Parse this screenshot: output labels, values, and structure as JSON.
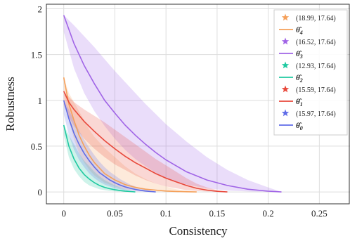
{
  "chart_data": {
    "type": "line",
    "xlabel": "Consistency",
    "ylabel": "Robustness",
    "xlim": [
      -0.017,
      0.28
    ],
    "ylim": [
      -0.13,
      2.05
    ],
    "xticks": [
      0,
      0.05,
      0.1,
      0.15,
      0.2,
      0.25
    ],
    "xtick_labels": [
      "0",
      "0.05",
      "0.1",
      "0.15",
      "0.2",
      "0.25"
    ],
    "yticks": [
      0,
      0.5,
      1,
      1.5,
      2
    ],
    "ytick_labels": [
      "0",
      "0.5",
      "1",
      "1.5",
      "2"
    ],
    "grid": true,
    "legend_position": "top-right",
    "series": [
      {
        "name": "θ̂₄",
        "label_base": "θ̂",
        "label_sub": "4",
        "star_label": "(18.99, 17.64)",
        "color": "#f5a05a",
        "x": [
          0,
          0.005,
          0.01,
          0.015,
          0.02,
          0.025,
          0.03,
          0.04,
          0.05,
          0.06,
          0.07,
          0.08,
          0.09,
          0.1,
          0.11,
          0.12,
          0.13
        ],
        "y": [
          1.25,
          0.96,
          0.78,
          0.62,
          0.5,
          0.4,
          0.32,
          0.2,
          0.13,
          0.08,
          0.05,
          0.03,
          0.02,
          0.01,
          0.005,
          0.002,
          0.0
        ],
        "band_low": [
          1.1,
          0.78,
          0.58,
          0.42,
          0.32,
          0.24,
          0.18,
          0.1,
          0.06,
          0.03,
          0.015,
          0.008,
          0.004,
          0.002,
          0.001,
          0.0,
          0.0
        ],
        "band_high": [
          1.25,
          1.08,
          0.98,
          0.88,
          0.78,
          0.68,
          0.6,
          0.48,
          0.38,
          0.28,
          0.2,
          0.14,
          0.09,
          0.06,
          0.03,
          0.015,
          0.0
        ]
      },
      {
        "name": "θ̂₃",
        "label_base": "θ̂",
        "label_sub": "3",
        "star_label": "(16.52, 17.64)",
        "color": "#a064e6",
        "x": [
          0,
          0.01,
          0.02,
          0.03,
          0.04,
          0.05,
          0.06,
          0.07,
          0.08,
          0.09,
          0.1,
          0.12,
          0.14,
          0.16,
          0.18,
          0.2,
          0.213
        ],
        "y": [
          1.93,
          1.62,
          1.38,
          1.18,
          1.0,
          0.86,
          0.73,
          0.62,
          0.52,
          0.43,
          0.35,
          0.22,
          0.13,
          0.07,
          0.03,
          0.008,
          0.0
        ],
        "band_low": [
          1.75,
          1.35,
          1.08,
          0.88,
          0.72,
          0.58,
          0.46,
          0.36,
          0.28,
          0.21,
          0.15,
          0.08,
          0.04,
          0.015,
          0.005,
          0.0,
          0.0
        ],
        "band_high": [
          1.93,
          1.82,
          1.7,
          1.58,
          1.45,
          1.32,
          1.2,
          1.08,
          0.96,
          0.85,
          0.74,
          0.55,
          0.38,
          0.24,
          0.13,
          0.05,
          0.0
        ]
      },
      {
        "name": "θ̂₂",
        "label_base": "θ̂",
        "label_sub": "2",
        "star_label": "(12.93, 17.64)",
        "color": "#1fc9a1",
        "x": [
          0,
          0.005,
          0.01,
          0.015,
          0.02,
          0.025,
          0.03,
          0.035,
          0.04,
          0.045,
          0.05,
          0.055,
          0.06,
          0.065,
          0.07
        ],
        "y": [
          0.73,
          0.5,
          0.36,
          0.26,
          0.19,
          0.14,
          0.1,
          0.07,
          0.05,
          0.035,
          0.024,
          0.015,
          0.009,
          0.004,
          0.0
        ],
        "band_low": [
          0.62,
          0.38,
          0.25,
          0.17,
          0.11,
          0.07,
          0.05,
          0.03,
          0.02,
          0.01,
          0.006,
          0.003,
          0.001,
          0.0,
          0.0
        ],
        "band_high": [
          0.73,
          0.62,
          0.52,
          0.42,
          0.34,
          0.28,
          0.22,
          0.17,
          0.13,
          0.1,
          0.07,
          0.05,
          0.03,
          0.015,
          0.0
        ]
      },
      {
        "name": "θ̂₁",
        "label_base": "θ̂",
        "label_sub": "1",
        "star_label": "(15.59, 17.64)",
        "color": "#e8483b",
        "x": [
          0,
          0.005,
          0.01,
          0.02,
          0.03,
          0.04,
          0.05,
          0.06,
          0.07,
          0.08,
          0.09,
          0.1,
          0.11,
          0.12,
          0.13,
          0.14,
          0.15,
          0.16
        ],
        "y": [
          1.1,
          0.98,
          0.9,
          0.77,
          0.66,
          0.56,
          0.47,
          0.39,
          0.32,
          0.26,
          0.2,
          0.15,
          0.11,
          0.07,
          0.04,
          0.02,
          0.007,
          0.0
        ],
        "band_low": [
          0.95,
          0.82,
          0.72,
          0.58,
          0.47,
          0.38,
          0.3,
          0.24,
          0.18,
          0.13,
          0.09,
          0.06,
          0.04,
          0.02,
          0.01,
          0.004,
          0.001,
          0.0
        ],
        "band_high": [
          1.1,
          1.04,
          0.98,
          0.9,
          0.83,
          0.76,
          0.68,
          0.6,
          0.52,
          0.44,
          0.36,
          0.29,
          0.22,
          0.15,
          0.09,
          0.05,
          0.02,
          0.0
        ]
      },
      {
        "name": "θ̂₀",
        "label_base": "θ̂",
        "label_sub": "0",
        "star_label": "(15.97, 17.64)",
        "color": "#5f6ce8",
        "x": [
          0,
          0.005,
          0.01,
          0.015,
          0.02,
          0.025,
          0.03,
          0.035,
          0.04,
          0.045,
          0.05,
          0.055,
          0.06,
          0.065,
          0.07,
          0.075,
          0.08,
          0.085,
          0.09
        ],
        "y": [
          1.0,
          0.8,
          0.64,
          0.52,
          0.42,
          0.34,
          0.27,
          0.21,
          0.17,
          0.13,
          0.1,
          0.075,
          0.055,
          0.04,
          0.027,
          0.017,
          0.01,
          0.004,
          0.0
        ],
        "band_low": [
          0.85,
          0.62,
          0.46,
          0.35,
          0.27,
          0.2,
          0.15,
          0.11,
          0.08,
          0.06,
          0.04,
          0.03,
          0.02,
          0.012,
          0.007,
          0.004,
          0.002,
          0.0,
          0.0
        ],
        "band_high": [
          1.0,
          0.9,
          0.78,
          0.67,
          0.57,
          0.48,
          0.4,
          0.33,
          0.27,
          0.22,
          0.18,
          0.14,
          0.11,
          0.08,
          0.06,
          0.04,
          0.025,
          0.012,
          0.0
        ]
      }
    ]
  }
}
